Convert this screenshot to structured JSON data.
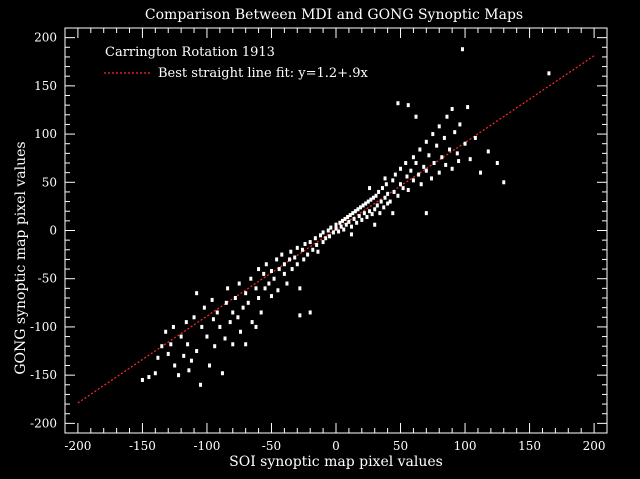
{
  "chart_data": {
    "type": "scatter",
    "title": "Comparison Between MDI and GONG Synoptic Maps",
    "xlabel": "SOI synoptic map pixel values",
    "ylabel": "GONG synoptic map pixel values",
    "xlim": [
      -210,
      210
    ],
    "ylim": [
      -210,
      210
    ],
    "xticks": [
      -200,
      -150,
      -100,
      -50,
      0,
      50,
      100,
      150,
      200
    ],
    "yticks": [
      -200,
      -150,
      -100,
      -50,
      0,
      50,
      100,
      150,
      200
    ],
    "xtick_labels": [
      "-200",
      "-150",
      "-100",
      "-50",
      "0",
      "50",
      "100",
      "150",
      "200"
    ],
    "ytick_labels": [
      "-200",
      "-150",
      "-100",
      "-50",
      "0",
      "50",
      "100",
      "150",
      "200"
    ],
    "grid": false,
    "legend_position": "top-left",
    "legend": {
      "header": "Carrington Rotation 1913",
      "fit_label": "Best straight line fit: y=1.2+.9x"
    },
    "fit": {
      "intercept": 1.2,
      "slope": 0.9,
      "x_range": [
        -200,
        200
      ],
      "color": "#ff2a2a"
    },
    "point_color": "#ffffff",
    "series": [
      {
        "values": [
          [
            -145,
            -152
          ],
          [
            -140,
            -148
          ],
          [
            -138,
            -132
          ],
          [
            -135,
            -120
          ],
          [
            -132,
            -105
          ],
          [
            -130,
            -128
          ],
          [
            -128,
            -118
          ],
          [
            -126,
            -100
          ],
          [
            -125,
            -140
          ],
          [
            -122,
            -150
          ],
          [
            -120,
            -110
          ],
          [
            -118,
            -130
          ],
          [
            -116,
            -95
          ],
          [
            -115,
            -118
          ],
          [
            -114,
            -145
          ],
          [
            -112,
            -135
          ],
          [
            -110,
            -90
          ],
          [
            -108,
            -125
          ],
          [
            -105,
            -160
          ],
          [
            -104,
            -100
          ],
          [
            -102,
            -80
          ],
          [
            -100,
            -110
          ],
          [
            -98,
            -140
          ],
          [
            -96,
            -72
          ],
          [
            -95,
            -92
          ],
          [
            -94,
            -120
          ],
          [
            -92,
            -85
          ],
          [
            -90,
            -100
          ],
          [
            -88,
            -148
          ],
          [
            -86,
            -112
          ],
          [
            -85,
            -75
          ],
          [
            -84,
            -60
          ],
          [
            -82,
            -95
          ],
          [
            -80,
            -85
          ],
          [
            -78,
            -70
          ],
          [
            -76,
            -90
          ],
          [
            -75,
            -55
          ],
          [
            -74,
            -105
          ],
          [
            -72,
            -80
          ],
          [
            -70,
            -118
          ],
          [
            -70,
            -65
          ],
          [
            -68,
            -75
          ],
          [
            -66,
            -50
          ],
          [
            -65,
            -95
          ],
          [
            -62,
            -60
          ],
          [
            -60,
            -40
          ],
          [
            -60,
            -70
          ],
          [
            -58,
            -85
          ],
          [
            -56,
            -45
          ],
          [
            -55,
            -60
          ],
          [
            -54,
            -35
          ],
          [
            -52,
            -55
          ],
          [
            -50,
            -68
          ],
          [
            -50,
            -42
          ],
          [
            -48,
            -50
          ],
          [
            -46,
            -30
          ],
          [
            -45,
            -62
          ],
          [
            -44,
            -40
          ],
          [
            -42,
            -25
          ],
          [
            -40,
            -45
          ],
          [
            -40,
            -35
          ],
          [
            -38,
            -55
          ],
          [
            -36,
            -30
          ],
          [
            -35,
            -22
          ],
          [
            -34,
            -40
          ],
          [
            -32,
            -28
          ],
          [
            -30,
            -18
          ],
          [
            -30,
            -35
          ],
          [
            -28,
            -60
          ],
          [
            -26,
            -20
          ],
          [
            -25,
            -30
          ],
          [
            -24,
            -14
          ],
          [
            -22,
            -25
          ],
          [
            -20,
            -12
          ],
          [
            -20,
            -85
          ],
          [
            -18,
            -20
          ],
          [
            -16,
            -8
          ],
          [
            -15,
            -15
          ],
          [
            -14,
            -22
          ],
          [
            -12,
            -5
          ],
          [
            -10,
            -12
          ],
          [
            -10,
            -2
          ],
          [
            -8,
            -8
          ],
          [
            -6,
            0
          ],
          [
            -5,
            -6
          ],
          [
            -4,
            3
          ],
          [
            -2,
            -2
          ],
          [
            0,
            2
          ],
          [
            0,
            6
          ],
          [
            2,
            -1
          ],
          [
            3,
            8
          ],
          [
            4,
            4
          ],
          [
            5,
            10
          ],
          [
            6,
            1
          ],
          [
            7,
            12
          ],
          [
            8,
            6
          ],
          [
            9,
            14
          ],
          [
            10,
            9
          ],
          [
            11,
            16
          ],
          [
            12,
            4
          ],
          [
            13,
            18
          ],
          [
            14,
            12
          ],
          [
            15,
            20
          ],
          [
            16,
            8
          ],
          [
            17,
            22
          ],
          [
            18,
            15
          ],
          [
            19,
            24
          ],
          [
            20,
            11
          ],
          [
            21,
            26
          ],
          [
            22,
            18
          ],
          [
            23,
            28
          ],
          [
            24,
            14
          ],
          [
            25,
            30
          ],
          [
            26,
            20
          ],
          [
            27,
            32
          ],
          [
            28,
            17
          ],
          [
            29,
            34
          ],
          [
            30,
            22
          ],
          [
            31,
            36
          ],
          [
            32,
            26
          ],
          [
            33,
            40
          ],
          [
            34,
            18
          ],
          [
            35,
            30
          ],
          [
            36,
            44
          ],
          [
            37,
            24
          ],
          [
            38,
            34
          ],
          [
            39,
            48
          ],
          [
            40,
            28
          ],
          [
            40,
            38
          ],
          [
            42,
            30
          ],
          [
            44,
            52
          ],
          [
            45,
            40
          ],
          [
            46,
            58
          ],
          [
            48,
            36
          ],
          [
            50,
            64
          ],
          [
            50,
            48
          ],
          [
            52,
            44
          ],
          [
            54,
            70
          ],
          [
            55,
            56
          ],
          [
            56,
            42
          ],
          [
            58,
            62
          ],
          [
            60,
            76
          ],
          [
            60,
            52
          ],
          [
            62,
            70
          ],
          [
            64,
            58
          ],
          [
            65,
            84
          ],
          [
            66,
            48
          ],
          [
            68,
            66
          ],
          [
            70,
            92
          ],
          [
            70,
            62
          ],
          [
            72,
            78
          ],
          [
            74,
            54
          ],
          [
            75,
            100
          ],
          [
            76,
            70
          ],
          [
            78,
            88
          ],
          [
            80,
            60
          ],
          [
            80,
            108
          ],
          [
            82,
            76
          ],
          [
            84,
            96
          ],
          [
            85,
            68
          ],
          [
            86,
            118
          ],
          [
            88,
            84
          ],
          [
            90,
            126
          ],
          [
            90,
            64
          ],
          [
            92,
            102
          ],
          [
            94,
            80
          ],
          [
            95,
            72
          ],
          [
            96,
            110
          ],
          [
            98,
            188
          ],
          [
            100,
            90
          ],
          [
            102,
            128
          ],
          [
            104,
            74
          ],
          [
            108,
            96
          ],
          [
            112,
            60
          ],
          [
            118,
            82
          ],
          [
            125,
            70
          ],
          [
            130,
            50
          ],
          [
            165,
            163
          ],
          [
            56,
            130
          ],
          [
            44,
            18
          ],
          [
            70,
            18
          ],
          [
            48,
            132
          ],
          [
            62,
            118
          ],
          [
            30,
            6
          ],
          [
            -28,
            -88
          ],
          [
            -80,
            -118
          ],
          [
            -150,
            -155
          ],
          [
            -108,
            -65
          ],
          [
            -62,
            -100
          ],
          [
            12,
            -4
          ],
          [
            26,
            44
          ],
          [
            38,
            54
          ]
        ]
      }
    ]
  }
}
